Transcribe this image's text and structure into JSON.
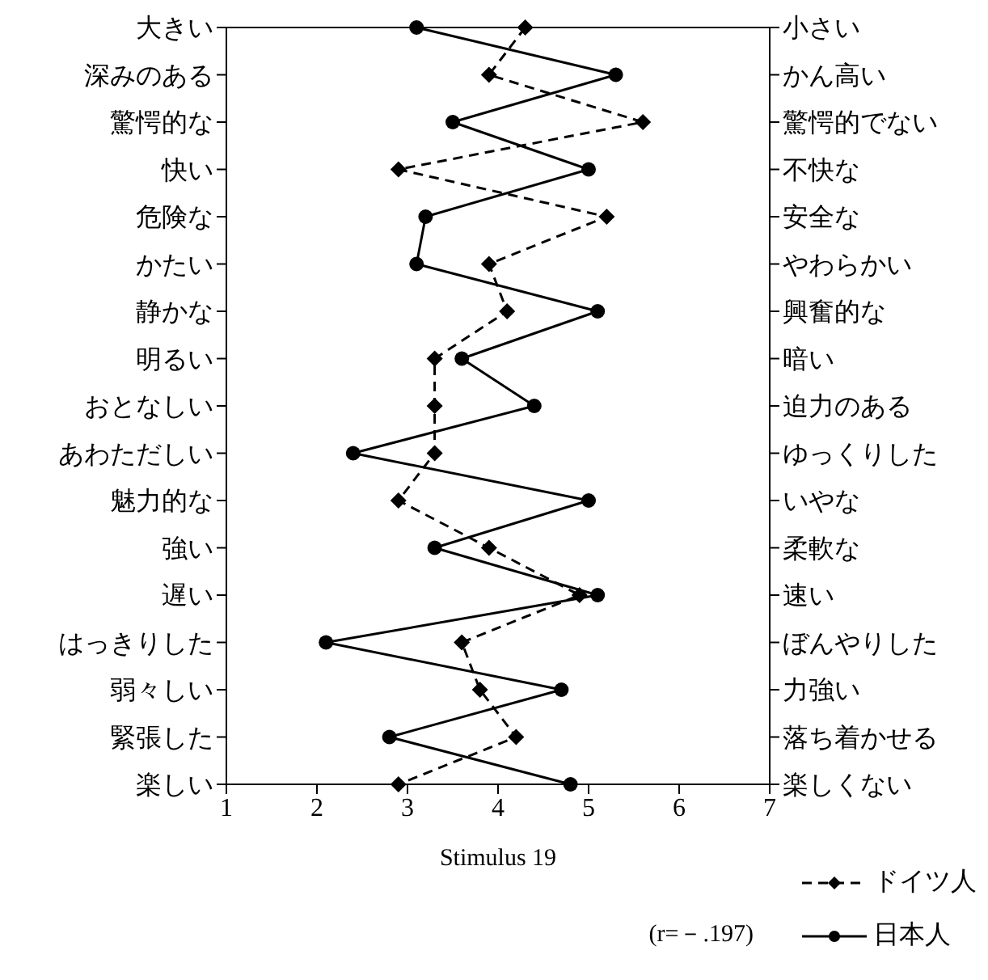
{
  "chart_data": {
    "type": "line",
    "orientation": "horizontal",
    "xlabel": "Stimulus 19",
    "categories": [
      "大きい",
      "深みのある",
      "驚愕的な",
      "快い",
      "危険な",
      "かたい",
      "静かな",
      "明るい",
      "おとなしい",
      "あわただしい",
      "魅力的な",
      "強い",
      "遅い",
      "はっきりした",
      "弱々しい",
      "緊張した",
      "楽しい"
    ],
    "y2_categories": [
      "小さい",
      "かん高い",
      "驚愕的でない",
      "不快な",
      "安全な",
      "やわらかい",
      "興奮的な",
      "暗い",
      "迫力のある",
      "ゆっくりした",
      "いやな",
      "柔軟な",
      "速い",
      "ぼんやりした",
      "力強い",
      "落ち着かせる",
      "楽しくない"
    ],
    "series": [
      {
        "name": "ドイツ人",
        "color": "#000000",
        "line_style": "dashed",
        "marker": "diamond",
        "values": [
          4.3,
          3.9,
          5.6,
          2.9,
          5.2,
          3.9,
          4.1,
          3.3,
          3.3,
          3.3,
          2.9,
          3.9,
          4.9,
          3.6,
          3.8,
          4.2,
          2.9
        ]
      },
      {
        "name": "日本人",
        "color": "#000000",
        "line_style": "solid",
        "marker": "circle",
        "values": [
          3.1,
          5.3,
          3.5,
          5.0,
          3.2,
          3.1,
          5.1,
          3.6,
          4.4,
          2.4,
          5.0,
          3.3,
          5.1,
          2.1,
          4.7,
          2.8,
          4.8
        ]
      }
    ],
    "xlim": [
      1,
      7
    ],
    "xticks": [
      1,
      2,
      3,
      4,
      5,
      6,
      7
    ],
    "grid": false,
    "legend": "bottom right",
    "annotations": [
      "(r=－.197)"
    ]
  }
}
